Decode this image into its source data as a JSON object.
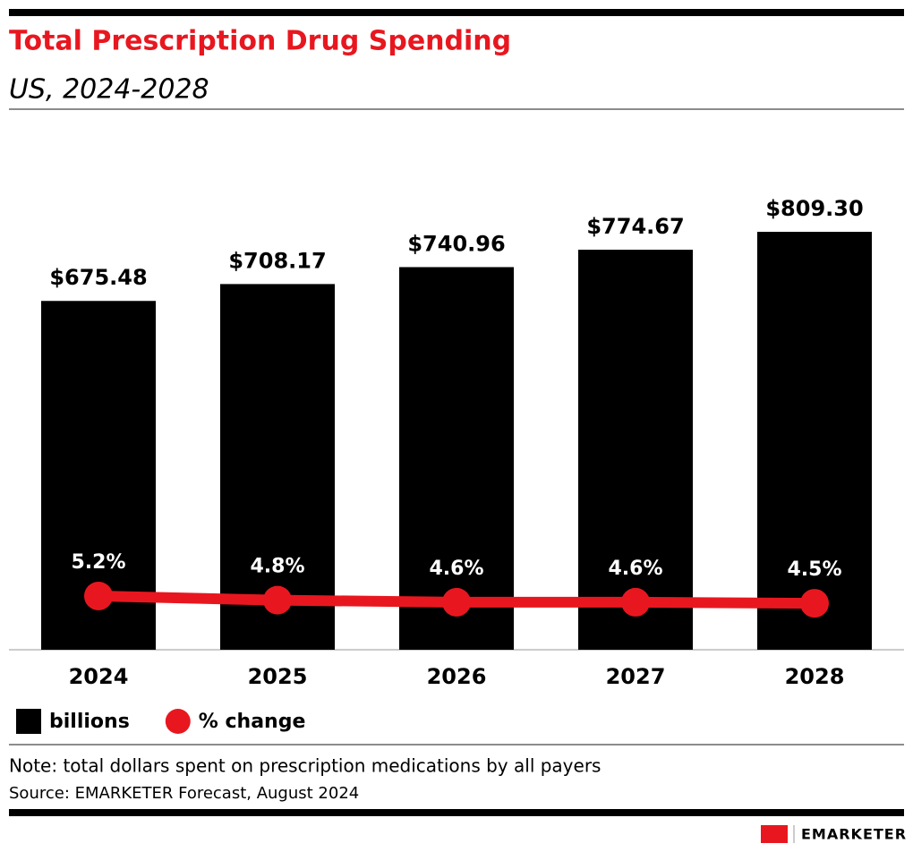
{
  "chart_data": {
    "type": "bar",
    "title": "Total Prescription Drug Spending",
    "subtitle": "US, 2024-2028",
    "categories": [
      "2024",
      "2025",
      "2026",
      "2027",
      "2028"
    ],
    "series": [
      {
        "name": "billions",
        "type": "bar",
        "color": "#000000",
        "values": [
          675.48,
          708.17,
          740.96,
          774.67,
          809.3
        ],
        "value_labels": [
          "$675.48",
          "$708.17",
          "$740.96",
          "$774.67",
          "$809.30"
        ]
      },
      {
        "name": "% change",
        "type": "line",
        "axis": "y2",
        "color": "#e8171f",
        "values": [
          5.2,
          4.8,
          4.6,
          4.6,
          4.5
        ],
        "value_labels": [
          "5.2%",
          "4.8%",
          "4.6%",
          "4.6%",
          "4.5%"
        ]
      }
    ],
    "ylim": [
      0,
      1000
    ],
    "y2lim": [
      0,
      50
    ],
    "grid": false,
    "note": "Note: total dollars spent on prescription medications by all payers",
    "source": "Source: EMARKETER Forecast, August 2024",
    "brand": "EMARKETER"
  }
}
